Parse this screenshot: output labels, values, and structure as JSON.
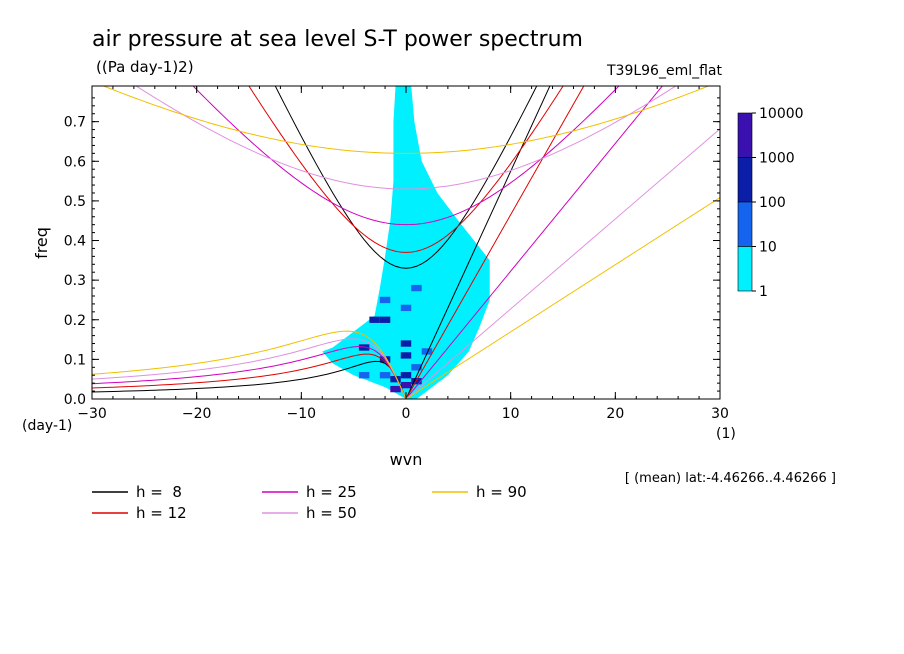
{
  "chart_data": {
    "type": "heatmap",
    "title": "air pressure at sea level S-T power spectrum",
    "units": "((Pa day-1)2)",
    "run_label": "T39L96_eml_flat",
    "xlabel": "wvn",
    "ylabel": "freq",
    "x_unit": "(1)",
    "y_unit": "(day-1)",
    "xlim": [
      -30,
      30
    ],
    "ylim": [
      0,
      0.79
    ],
    "x_ticks": [
      "-30",
      "-20",
      "-10",
      "0",
      "10",
      "20",
      "30"
    ],
    "y_ticks": [
      "0.0",
      "0.1",
      "0.2",
      "0.3",
      "0.4",
      "0.5",
      "0.6",
      "0.7"
    ],
    "colorbar": {
      "labels": [
        "10000",
        "1000",
        "100",
        "10",
        "1"
      ],
      "colors": [
        "#3a10b0",
        "#0a1ea8",
        "#1464f0",
        "#00f0ff"
      ],
      "levels": [
        1,
        10,
        100,
        1000,
        10000
      ]
    },
    "cells": [
      {
        "wvn": -1,
        "freq": 0.025,
        "level": 3
      },
      {
        "wvn": 0,
        "freq": 0.035,
        "level": 3
      },
      {
        "wvn": -1,
        "freq": 0.05,
        "level": 2
      },
      {
        "wvn": 0,
        "freq": 0.06,
        "level": 2
      },
      {
        "wvn": 1,
        "freq": 0.045,
        "level": 2
      },
      {
        "wvn": -2,
        "freq": 0.2,
        "level": 2
      },
      {
        "wvn": -3,
        "freq": 0.2,
        "level": 2
      },
      {
        "wvn": -4,
        "freq": 0.13,
        "level": 2
      },
      {
        "wvn": 0,
        "freq": 0.14,
        "level": 2
      },
      {
        "wvn": 0,
        "freq": 0.11,
        "level": 2
      },
      {
        "wvn": -2,
        "freq": 0.1,
        "level": 2
      },
      {
        "wvn": 2,
        "freq": 0.12,
        "level": 1
      },
      {
        "wvn": -4,
        "freq": 0.06,
        "level": 1
      },
      {
        "wvn": -2,
        "freq": 0.06,
        "level": 1
      },
      {
        "wvn": -2,
        "freq": 0.25,
        "level": 1
      },
      {
        "wvn": 1,
        "freq": 0.28,
        "level": 1
      },
      {
        "wvn": 0,
        "freq": 0.23,
        "level": 1
      },
      {
        "wvn": 1,
        "freq": 0.08,
        "level": 1
      }
    ],
    "series": [
      {
        "name": "h =  8",
        "color": "#000000",
        "kelvin_speed_wvn_per_day": 17.4,
        "ig_gap": 0.33
      },
      {
        "name": "h = 12",
        "color": "#e00000",
        "kelvin_speed_wvn_per_day": 21.5,
        "ig_gap": 0.37
      },
      {
        "name": "h = 25",
        "color": "#d000c0",
        "kelvin_speed_wvn_per_day": 31.0,
        "ig_gap": 0.44
      },
      {
        "name": "h = 50",
        "color": "#e090e0",
        "kelvin_speed_wvn_per_day": 44.0,
        "ig_gap": 0.53
      },
      {
        "name": "h = 90",
        "color": "#f0c000",
        "kelvin_speed_wvn_per_day": 59.0,
        "ig_gap": 0.62
      }
    ],
    "annotation": "[ (mean) lat:-4.46266..4.46266 ]"
  }
}
